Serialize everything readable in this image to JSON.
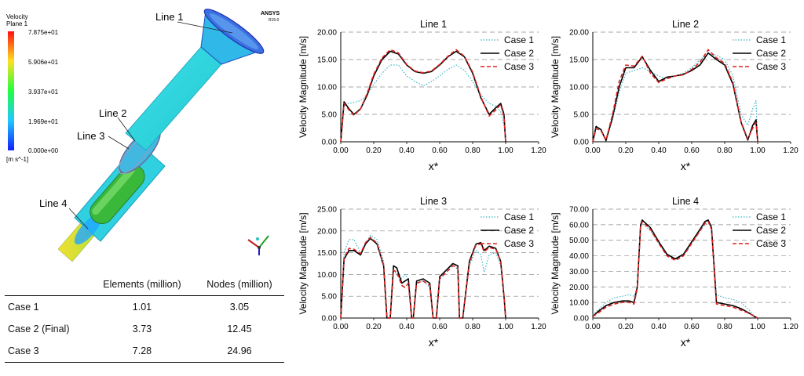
{
  "simulation": {
    "legend_title": "Velocity",
    "legend_subtitle": "Plane 1",
    "legend_ticks": [
      "7.875e+01",
      "5.906e+01",
      "3.937e+01",
      "1.969e+01",
      "0.000e+00"
    ],
    "legend_unit": "[m s^-1]",
    "brand": "ANSYS",
    "brand_version": "R15.0",
    "line_labels": [
      "Line 1",
      "Line 2",
      "Line 3",
      "Line 4"
    ]
  },
  "mesh_table": {
    "headers": [
      "",
      "Elements (million)",
      "Nodes (million)"
    ],
    "rows": [
      [
        "Case 1",
        "1.01",
        "3.05"
      ],
      [
        "Case 2 (Final)",
        "3.73",
        "12.45"
      ],
      [
        "Case 3",
        "7.28",
        "24.96"
      ]
    ]
  },
  "series_style": {
    "Case 1": {
      "color": "#3cb4c8",
      "dash": "1.5,2",
      "width": 1.2
    },
    "Case 2": {
      "color": "#000000",
      "dash": "",
      "width": 1.6
    },
    "Case 3": {
      "color": "#e0201e",
      "dash": "5,3",
      "width": 1.6
    }
  },
  "chart_data": [
    {
      "type": "line",
      "title": "Line 1",
      "xlabel": "x*",
      "ylabel": "Velocity Magnitude [m/s]",
      "xlim": [
        0,
        1.2
      ],
      "ylim": [
        0,
        20
      ],
      "xticks": [
        "0.00",
        "0.20",
        "0.40",
        "0.60",
        "0.80",
        "1.00",
        "1.20"
      ],
      "yticks": [
        "0.00",
        "5.00",
        "10.00",
        "15.00",
        "20.00"
      ],
      "grid": "horizontal-dashed",
      "legend": "top-right",
      "series": [
        {
          "name": "Case 1",
          "x": [
            0,
            0.02,
            0.05,
            0.08,
            0.12,
            0.16,
            0.2,
            0.25,
            0.3,
            0.35,
            0.4,
            0.45,
            0.5,
            0.55,
            0.6,
            0.65,
            0.7,
            0.75,
            0.8,
            0.85,
            0.9,
            0.94,
            0.97,
            0.99,
            1.0
          ],
          "y": [
            0,
            6.8,
            7.0,
            7.2,
            7.5,
            8.5,
            10.5,
            12.5,
            14.0,
            14.0,
            12.0,
            11.0,
            10.2,
            11.0,
            12.0,
            13.2,
            14.0,
            13.0,
            11.0,
            8.5,
            7.0,
            6.5,
            5.5,
            3.0,
            0
          ]
        },
        {
          "name": "Case 2",
          "x": [
            0,
            0.02,
            0.05,
            0.08,
            0.12,
            0.16,
            0.2,
            0.25,
            0.3,
            0.35,
            0.4,
            0.45,
            0.5,
            0.55,
            0.6,
            0.65,
            0.7,
            0.75,
            0.8,
            0.85,
            0.9,
            0.94,
            0.97,
            0.99,
            1.0
          ],
          "y": [
            0,
            7.3,
            6.0,
            5.0,
            6.0,
            8.5,
            12.0,
            15.0,
            16.5,
            16.0,
            14.0,
            12.8,
            12.5,
            12.8,
            14.0,
            15.5,
            16.5,
            15.5,
            12.5,
            8.0,
            5.0,
            6.2,
            7.0,
            5.0,
            0
          ]
        },
        {
          "name": "Case 3",
          "x": [
            0,
            0.02,
            0.05,
            0.08,
            0.12,
            0.16,
            0.2,
            0.25,
            0.3,
            0.35,
            0.4,
            0.45,
            0.5,
            0.55,
            0.6,
            0.65,
            0.7,
            0.75,
            0.8,
            0.85,
            0.9,
            0.94,
            0.97,
            0.99,
            1.0
          ],
          "y": [
            0,
            7.0,
            5.8,
            4.8,
            6.0,
            8.8,
            12.3,
            15.3,
            16.8,
            16.2,
            14.1,
            12.9,
            12.6,
            12.9,
            14.1,
            15.6,
            16.8,
            15.6,
            12.7,
            8.2,
            4.7,
            5.8,
            6.8,
            4.5,
            0
          ]
        }
      ]
    },
    {
      "type": "line",
      "title": "Line 2",
      "xlabel": "x*",
      "ylabel": "Velocity Magnitude [m/s]",
      "xlim": [
        0,
        1.2
      ],
      "ylim": [
        0,
        20
      ],
      "xticks": [
        "0.00",
        "0.20",
        "0.40",
        "0.60",
        "0.80",
        "1.00",
        "1.20"
      ],
      "yticks": [
        "0.00",
        "5.00",
        "10.00",
        "15.00",
        "20.00"
      ],
      "grid": "horizontal-dashed",
      "legend": "top-right",
      "series": [
        {
          "name": "Case 1",
          "x": [
            0,
            0.02,
            0.05,
            0.08,
            0.12,
            0.16,
            0.2,
            0.25,
            0.3,
            0.35,
            0.4,
            0.45,
            0.5,
            0.55,
            0.6,
            0.65,
            0.7,
            0.75,
            0.8,
            0.85,
            0.9,
            0.94,
            0.97,
            0.99,
            1.0
          ],
          "y": [
            0,
            2.5,
            2.0,
            0.5,
            4.0,
            9.0,
            12.5,
            13.0,
            13.5,
            12.8,
            12.0,
            11.5,
            12.0,
            12.5,
            13.5,
            15.0,
            16.0,
            15.8,
            15.0,
            12.0,
            5.0,
            3.0,
            6.0,
            7.5,
            0
          ]
        },
        {
          "name": "Case 2",
          "x": [
            0,
            0.02,
            0.05,
            0.08,
            0.12,
            0.16,
            0.2,
            0.25,
            0.3,
            0.35,
            0.4,
            0.45,
            0.5,
            0.55,
            0.6,
            0.65,
            0.7,
            0.75,
            0.8,
            0.85,
            0.9,
            0.94,
            0.97,
            0.99,
            1.0
          ],
          "y": [
            0,
            2.8,
            2.2,
            0.2,
            4.5,
            10.0,
            13.5,
            13.5,
            15.5,
            13.0,
            11.0,
            11.8,
            12.0,
            12.3,
            13.0,
            14.0,
            16.2,
            15.0,
            14.0,
            10.5,
            3.5,
            0.3,
            3.0,
            4.0,
            0
          ]
        },
        {
          "name": "Case 3",
          "x": [
            0,
            0.02,
            0.05,
            0.08,
            0.12,
            0.16,
            0.2,
            0.25,
            0.3,
            0.35,
            0.4,
            0.45,
            0.5,
            0.55,
            0.6,
            0.65,
            0.7,
            0.75,
            0.8,
            0.85,
            0.9,
            0.94,
            0.97,
            0.99,
            1.0
          ],
          "y": [
            0,
            2.4,
            2.0,
            0.3,
            5.0,
            11.0,
            14.0,
            13.8,
            15.6,
            12.5,
            10.8,
            11.5,
            12.0,
            12.2,
            13.2,
            14.5,
            16.8,
            15.3,
            14.3,
            10.8,
            3.6,
            0.5,
            2.5,
            3.5,
            0
          ]
        }
      ]
    },
    {
      "type": "line",
      "title": "Line 3",
      "xlabel": "x*",
      "ylabel": "Velocity Magnitude [m/s]",
      "xlim": [
        0,
        1.2
      ],
      "ylim": [
        0,
        25
      ],
      "xticks": [
        "0.00",
        "0.20",
        "0.40",
        "0.60",
        "0.80",
        "1.00",
        "1.20"
      ],
      "yticks": [
        "0.00",
        "5.00",
        "10.00",
        "15.00",
        "20.00",
        "25.00"
      ],
      "grid": "horizontal-dashed",
      "legend": "top-right",
      "series": [
        {
          "name": "Case 1",
          "x": [
            0,
            0.02,
            0.05,
            0.08,
            0.12,
            0.15,
            0.18,
            0.22,
            0.26,
            0.28,
            0.3,
            0.32,
            0.34,
            0.37,
            0.39,
            0.41,
            0.43,
            0.44,
            0.46,
            0.5,
            0.54,
            0.56,
            0.57,
            0.58,
            0.6,
            0.64,
            0.68,
            0.71,
            0.72,
            0.74,
            0.78,
            0.82,
            0.85,
            0.87,
            0.9,
            0.94,
            0.97,
            0.99,
            1.0
          ],
          "y": [
            0,
            15.0,
            18.0,
            18.0,
            15.0,
            17.0,
            19.0,
            18.0,
            13.0,
            0,
            0,
            11.0,
            10.0,
            9.0,
            10.0,
            9.0,
            0,
            0,
            8.0,
            8.5,
            7.0,
            0,
            0,
            0,
            9.0,
            11.0,
            12.5,
            11.0,
            0,
            0,
            12.0,
            15.5,
            14.5,
            10.5,
            14.5,
            15.0,
            12.0,
            5.0,
            0
          ]
        },
        {
          "name": "Case 2",
          "x": [
            0,
            0.02,
            0.05,
            0.08,
            0.12,
            0.15,
            0.18,
            0.22,
            0.26,
            0.28,
            0.3,
            0.32,
            0.34,
            0.37,
            0.39,
            0.41,
            0.43,
            0.44,
            0.46,
            0.5,
            0.54,
            0.56,
            0.57,
            0.58,
            0.6,
            0.64,
            0.68,
            0.71,
            0.72,
            0.74,
            0.78,
            0.82,
            0.85,
            0.87,
            0.9,
            0.94,
            0.97,
            0.99,
            1.0
          ],
          "y": [
            0,
            13.5,
            15.5,
            15.5,
            14.5,
            17.0,
            18.3,
            17.0,
            12.0,
            0,
            0,
            12.0,
            11.5,
            8.0,
            8.5,
            9.0,
            0,
            0,
            8.5,
            9.0,
            8.0,
            0,
            0,
            0,
            9.5,
            11.0,
            12.5,
            12.0,
            0,
            0,
            13.0,
            17.0,
            17.3,
            15.5,
            16.5,
            16.0,
            13.0,
            5.0,
            0
          ]
        },
        {
          "name": "Case 3",
          "x": [
            0,
            0.02,
            0.05,
            0.08,
            0.12,
            0.15,
            0.18,
            0.22,
            0.26,
            0.28,
            0.3,
            0.32,
            0.34,
            0.37,
            0.39,
            0.41,
            0.43,
            0.44,
            0.46,
            0.5,
            0.54,
            0.56,
            0.57,
            0.58,
            0.6,
            0.64,
            0.68,
            0.71,
            0.72,
            0.74,
            0.78,
            0.82,
            0.85,
            0.87,
            0.9,
            0.94,
            0.97,
            0.99,
            1.0
          ],
          "y": [
            0,
            13.8,
            16.0,
            15.8,
            14.8,
            17.3,
            18.5,
            17.2,
            12.2,
            0,
            0,
            11.0,
            10.5,
            7.5,
            7.0,
            8.0,
            0,
            0,
            8.0,
            8.5,
            7.5,
            0,
            0,
            0,
            9.0,
            10.5,
            12.0,
            11.5,
            0,
            0,
            12.5,
            16.8,
            17.0,
            15.2,
            16.2,
            15.8,
            13.2,
            5.2,
            0
          ]
        }
      ]
    },
    {
      "type": "line",
      "title": "Line 4",
      "xlabel": "x*",
      "ylabel": "Velocity Magnitude [m/s]",
      "xlim": [
        0,
        1.2
      ],
      "ylim": [
        0,
        70
      ],
      "xticks": [
        "0.00",
        "0.20",
        "0.40",
        "0.60",
        "0.80",
        "1.00",
        "1.20"
      ],
      "yticks": [
        "0.00",
        "10.00",
        "20.00",
        "30.00",
        "40.00",
        "50.00",
        "60.00",
        "70.00"
      ],
      "grid": "horizontal-dashed",
      "legend": "top-right",
      "series": [
        {
          "name": "Case 1",
          "x": [
            0,
            0.03,
            0.08,
            0.13,
            0.18,
            0.22,
            0.25,
            0.27,
            0.29,
            0.3,
            0.35,
            0.4,
            0.45,
            0.5,
            0.55,
            0.6,
            0.65,
            0.68,
            0.7,
            0.72,
            0.75,
            0.8,
            0.85,
            0.9,
            0.95,
            0.98,
            1.0
          ],
          "y": [
            2,
            5,
            10,
            13,
            14,
            15,
            14,
            20,
            58,
            61,
            56,
            48,
            40,
            38,
            40,
            48,
            56,
            60,
            62,
            60,
            15,
            13,
            12,
            10,
            5,
            1,
            0
          ]
        },
        {
          "name": "Case 2",
          "x": [
            0,
            0.03,
            0.08,
            0.13,
            0.18,
            0.22,
            0.25,
            0.27,
            0.29,
            0.3,
            0.35,
            0.4,
            0.45,
            0.5,
            0.55,
            0.6,
            0.65,
            0.68,
            0.7,
            0.72,
            0.75,
            0.8,
            0.85,
            0.9,
            0.95,
            0.98,
            1.0
          ],
          "y": [
            1,
            4,
            8,
            10,
            11,
            11,
            10,
            20,
            60,
            63,
            58,
            49,
            41,
            38,
            41,
            49,
            57,
            62,
            63,
            58,
            10,
            9,
            8,
            6,
            3,
            1,
            0
          ]
        },
        {
          "name": "Case 3",
          "x": [
            0,
            0.03,
            0.08,
            0.13,
            0.18,
            0.22,
            0.25,
            0.27,
            0.29,
            0.3,
            0.35,
            0.4,
            0.45,
            0.5,
            0.55,
            0.6,
            0.65,
            0.68,
            0.7,
            0.72,
            0.75,
            0.8,
            0.85,
            0.9,
            0.95,
            0.98,
            1.0
          ],
          "y": [
            1,
            3,
            7,
            9,
            10,
            10,
            9,
            19,
            59,
            62,
            57,
            48,
            40,
            37,
            40,
            48,
            56,
            61,
            62,
            57,
            9,
            8,
            7,
            5,
            3,
            1,
            0
          ]
        }
      ]
    }
  ]
}
